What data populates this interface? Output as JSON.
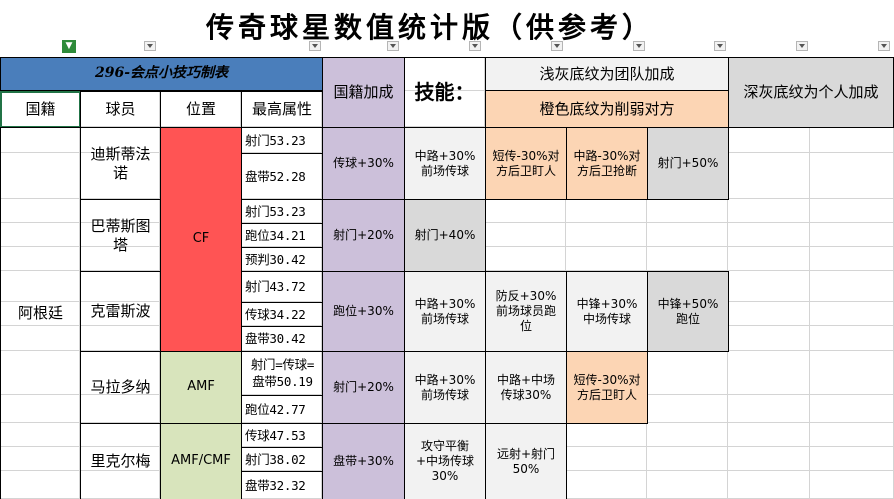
{
  "title": "传奇球星数值统计版（供参考）",
  "table_title": "296-会点小技巧制表",
  "headers": {
    "nationality": "国籍",
    "player": "球员",
    "position": "位置",
    "top_attr": "最高属性",
    "nation_bonus": "国籍加成",
    "skills": "技能："
  },
  "legend": {
    "light_gray": "浅灰底纹为团队加成",
    "orange": "橙色底纹为削弱对方",
    "dark_gray": "深灰底纹为个人加成"
  },
  "colors": {
    "title_bar": "#4a7ebb",
    "cf": "#ff5454",
    "amf": "#d8e4bc",
    "nation": "#ccc0da",
    "light_gray": "#f2f2f2",
    "orange": "#fcd5b4",
    "dark_gray": "#d9d9d9"
  },
  "country": "阿根廷",
  "players": [
    {
      "name": "迪斯蒂法诺",
      "position": "CF",
      "stats": [
        "射门53.23",
        "盘带52.28"
      ],
      "nation_bonus": "传球+30%",
      "skills": [
        "中路+30%前场传球",
        "短传-30%对方后卫盯人",
        "中路-30%对方后卫抢断",
        "射门+50%"
      ]
    },
    {
      "name": "巴蒂斯图塔",
      "position": "CF",
      "stats": [
        "射门53.23",
        "跑位34.21",
        "预判30.42"
      ],
      "nation_bonus": "射门+20%",
      "skills": [
        "射门+40%"
      ]
    },
    {
      "name": "克雷斯波",
      "position": "CF",
      "stats": [
        "射门43.72",
        "传球34.22",
        "盘带30.42"
      ],
      "nation_bonus": "跑位+30%",
      "skills": [
        "中路+30%前场传球",
        "防反+30%前场球员跑位",
        "中锋+30%中场传球",
        "中锋+50%跑位"
      ]
    },
    {
      "name": "马拉多纳",
      "position": "AMF",
      "stats": [
        "射门=传球=盘带50.19",
        "跑位42.77"
      ],
      "nation_bonus": "射门+20%",
      "skills": [
        "中路+30%前场传球",
        "中路+中场传球30%",
        "短传-30%对方后卫盯人"
      ]
    },
    {
      "name": "里克尔梅",
      "position": "AMF/CMF",
      "stats": [
        "传球47.53",
        "射门38.02",
        "盘带32.32"
      ],
      "nation_bonus": "盘带+30%",
      "skills": [
        "攻守平衡+中场传球30%",
        "远射+射门50%"
      ]
    }
  ]
}
